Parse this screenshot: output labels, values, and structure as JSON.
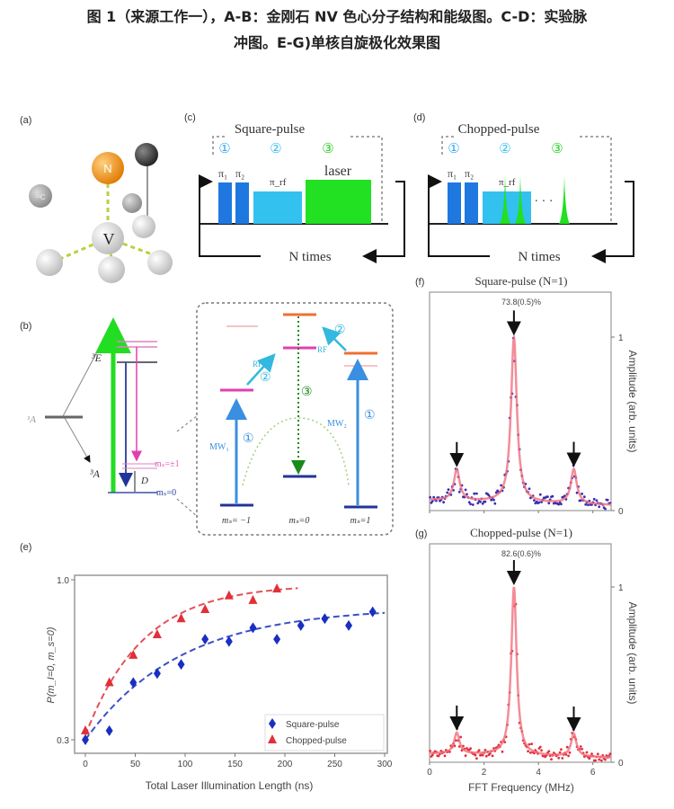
{
  "caption": {
    "line1": "图 1（来源工作一），A-B：金刚石 NV 色心分子结构和能级图。C-D：实验脉",
    "line2": "冲图。E-G)单核自旋极化效果图"
  },
  "panel_a": {
    "label": "(a)",
    "atoms": {
      "nitrogen": "N",
      "vacancy": "V",
      "carbon13": "¹³C"
    }
  },
  "panel_b": {
    "label": "(b)",
    "singlet": "¹A",
    "excited": "³E",
    "ground": "³A",
    "zfs": "D",
    "ms_pm1": "mₛ=±1",
    "ms_0": "mₛ=0",
    "mw1": "MW₁",
    "mw2": "MW₂",
    "rf": "RF",
    "step1": "①",
    "step2": "②",
    "step3": "③",
    "bottom_labels": [
      "mₛ= −1",
      "mₛ=0",
      "mₛ=1"
    ]
  },
  "panel_c": {
    "label": "(c)",
    "title": "Square-pulse",
    "steps": [
      "①",
      "②",
      "③"
    ],
    "pi1": "π₁",
    "pi2": "π₂",
    "pirf": "π_rf",
    "laser": "laser",
    "loop": "N times"
  },
  "panel_d": {
    "label": "(d)",
    "title": "Chopped-pulse",
    "steps": [
      "①",
      "②",
      "③"
    ],
    "pi1": "π₁",
    "pi2": "π₂",
    "pirf": "π_rf",
    "dots": "· · ·",
    "loop": "N times"
  },
  "colors": {
    "pulse_dark": "#1f78e0",
    "pulse_light": "#33c1f0",
    "laser": "#22e022",
    "square": "#1a2fc0",
    "chopped": "#e0303a",
    "fit": "#f07080",
    "orange": "#f08a10",
    "magenta": "#e040b0"
  },
  "chart_data": [
    {
      "id": "e",
      "label": "(e)",
      "type": "scatter",
      "xlabel": "Total Laser Illumination Length (ns)",
      "ylabel": "P(m_I=0, m_s=0)",
      "xlim": [
        -10,
        305
      ],
      "ylim": [
        0.27,
        1.02
      ],
      "xticks": [
        0,
        50,
        100,
        150,
        200,
        250,
        300
      ],
      "yticks": [
        0.3,
        1.0
      ],
      "ytick_labels": [
        "0.3",
        "1.0"
      ],
      "legend": "bottom-right",
      "series": [
        {
          "name": "Square-pulse",
          "marker": "diamond",
          "color": "#1a2fc0",
          "x": [
            0,
            24,
            48,
            72,
            96,
            120,
            144,
            168,
            192,
            216,
            240,
            264,
            288
          ],
          "y": [
            0.3,
            0.34,
            0.55,
            0.59,
            0.63,
            0.74,
            0.73,
            0.79,
            0.74,
            0.8,
            0.83,
            0.8,
            0.86
          ],
          "fit": {
            "form": "a + b*(1-exp(-x/tau))",
            "a": 0.3,
            "b": 0.58,
            "tau": 95,
            "xmax": 300
          }
        },
        {
          "name": "Chopped-pulse",
          "marker": "triangle",
          "color": "#e0303a",
          "x": [
            0,
            24,
            48,
            72,
            96,
            120,
            144,
            168,
            192
          ],
          "y": [
            0.34,
            0.55,
            0.67,
            0.76,
            0.83,
            0.87,
            0.93,
            0.91,
            0.96
          ],
          "fit": {
            "form": "a + b*(1-exp(-x/tau))",
            "a": 0.32,
            "b": 0.66,
            "tau": 58,
            "xmax": 213
          }
        }
      ]
    },
    {
      "id": "f",
      "label": "(f)",
      "type": "scatter",
      "title": "Square-pulse (N=1)",
      "annotation": "73.8(0.5)%",
      "ylabel": "Amplitude (arb. units)",
      "xlim": [
        0,
        6.67
      ],
      "ylim": [
        0,
        1.25
      ],
      "yticks": [
        0,
        1
      ],
      "ytick_labels": [
        "0",
        "1"
      ],
      "marker_color": "#3a2fb0",
      "peaks": [
        {
          "x": 1.0,
          "amp": 0.18
        },
        {
          "x": 3.1,
          "amp": 0.95
        },
        {
          "x": 5.3,
          "amp": 0.2
        }
      ],
      "baseline": 0.06,
      "width": 0.13
    },
    {
      "id": "g",
      "label": "(g)",
      "type": "scatter",
      "title": "Chopped-pulse (N=1)",
      "annotation": "82.6(0.6)%",
      "xlabel": "FFT Frequency (MHz)",
      "ylabel": "Amplitude (arb. units)",
      "xlim": [
        0,
        6.67
      ],
      "ylim": [
        0,
        1.25
      ],
      "xticks": [
        0,
        2,
        4,
        6
      ],
      "xtick_labels": [
        "0",
        "2",
        "4",
        "6"
      ],
      "yticks": [
        0,
        1
      ],
      "ytick_labels": [
        "0",
        "1"
      ],
      "marker_color": "#e0303a",
      "peaks": [
        {
          "x": 1.0,
          "amp": 0.12
        },
        {
          "x": 3.1,
          "amp": 0.96
        },
        {
          "x": 5.3,
          "amp": 0.13
        }
      ],
      "baseline": 0.05,
      "width": 0.12
    }
  ]
}
